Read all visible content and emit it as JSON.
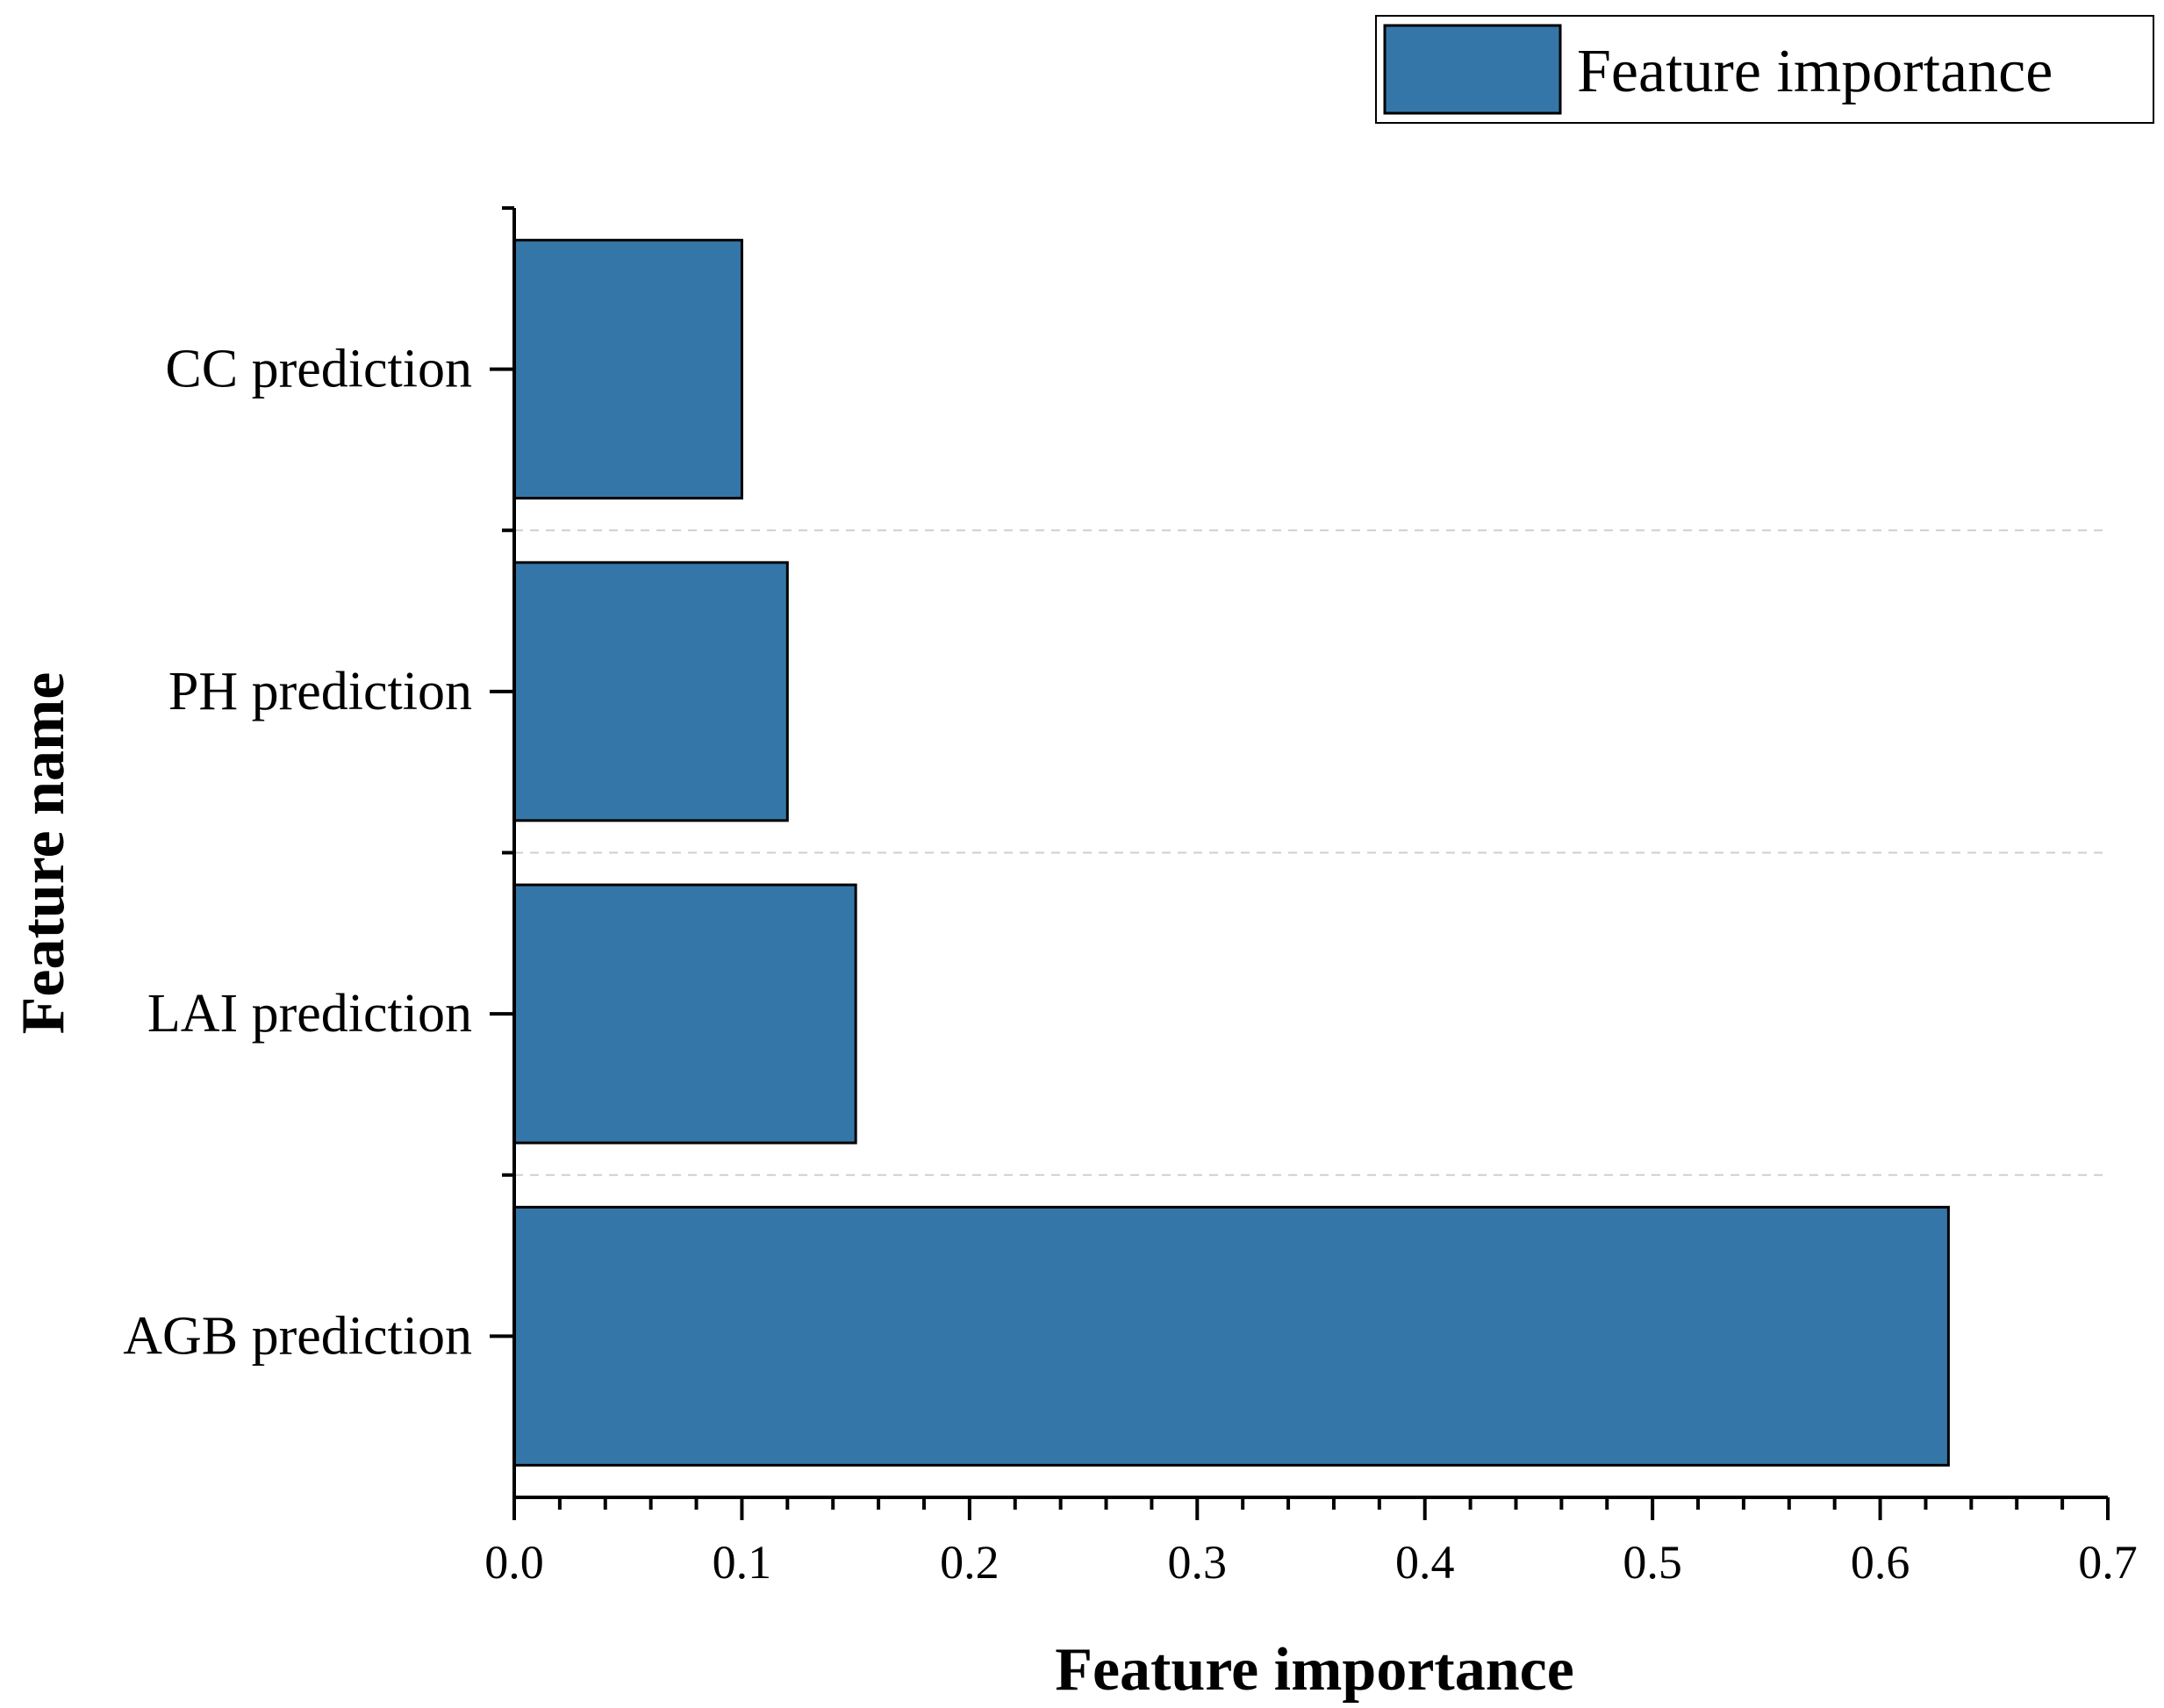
{
  "chart_data": {
    "type": "bar",
    "orientation": "horizontal",
    "categories": [
      "CC prediction",
      "PH prediction",
      "LAI prediction",
      "AGB prediction"
    ],
    "series": [
      {
        "name": "Feature importance",
        "values": [
          0.1,
          0.12,
          0.15,
          0.63
        ],
        "color": "#3576A8"
      }
    ],
    "title": "",
    "xlabel": "Feature importance",
    "ylabel": "Feature name",
    "xlim": [
      0.0,
      0.7
    ],
    "xticks": [
      "0.0",
      "0.1",
      "0.2",
      "0.3",
      "0.4",
      "0.5",
      "0.6",
      "0.7"
    ],
    "grid": "horizontal dashed separators between categories",
    "legend": "top-right"
  }
}
